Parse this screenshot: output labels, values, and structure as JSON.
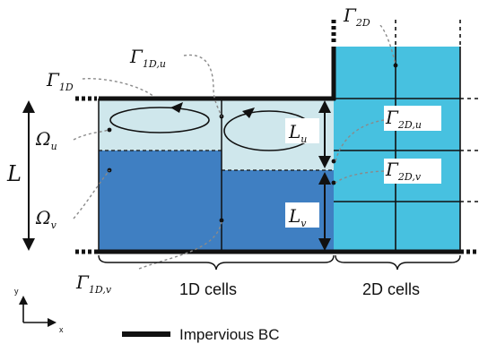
{
  "symbols": {
    "gamma_2d": {
      "base": "Γ",
      "sub": "2D"
    },
    "gamma_1d": {
      "base": "Γ",
      "sub": "1D"
    },
    "gamma_1d_u": {
      "base": "Γ",
      "sub": "1D,u"
    },
    "gamma_1d_v": {
      "base": "Γ",
      "sub": "1D,v"
    },
    "gamma_2d_u": {
      "base": "Γ",
      "sub": "2D,u"
    },
    "gamma_2d_v": {
      "base": "Γ",
      "sub": "2D,v"
    },
    "omega_u": {
      "base": "Ω",
      "sub": "u"
    },
    "omega_v": {
      "base": "Ω",
      "sub": "v"
    },
    "L": {
      "base": "L",
      "sub": ""
    },
    "L_u": {
      "base": "L",
      "sub": "u"
    },
    "L_v": {
      "base": "L",
      "sub": "v"
    }
  },
  "labels": {
    "cells_1d": "1D cells",
    "cells_2d": "2D cells",
    "impervious_bc": "Impervious BC"
  },
  "axes": {
    "x": "x",
    "y": "y"
  },
  "colors": {
    "upper_layer": "#cfe7ec",
    "lower_layer": "#3f7fc2",
    "cells_2d": "#47c1e0",
    "boundary": "#111111"
  }
}
